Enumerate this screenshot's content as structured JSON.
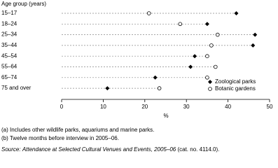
{
  "chart_data": {
    "type": "dot",
    "y_axis_title": "Age group (years)",
    "x_axis_title": "%",
    "categories": [
      "15–17",
      "18–24",
      "25–34",
      "35–44",
      "45–54",
      "55–64",
      "65–74",
      "75 and over"
    ],
    "series": [
      {
        "name": "Zoological parks",
        "color": "#000000",
        "marker": "diamond",
        "values": [
          42,
          35,
          46.5,
          46,
          32,
          31,
          22.5,
          11
        ]
      },
      {
        "name": "Botanic gardens",
        "color": "#000000",
        "marker": "circle",
        "values": [
          21,
          28.5,
          37.5,
          36,
          35,
          37,
          35,
          23.5
        ]
      }
    ],
    "xlim": [
      0,
      50
    ],
    "xticks": [
      0,
      10,
      20,
      30,
      40,
      50
    ],
    "legend": "lower right",
    "notes": [
      "(a) Includes other wildlife parks, aquariums and marine parks.",
      "(b) Twelve months before interview in 2005–06."
    ],
    "source_label": "Source:",
    "source_title": "Attendance at Selected Cultural Venues and Events, 2005–06",
    "source_rest": "(cat. no. 4114.0)."
  }
}
